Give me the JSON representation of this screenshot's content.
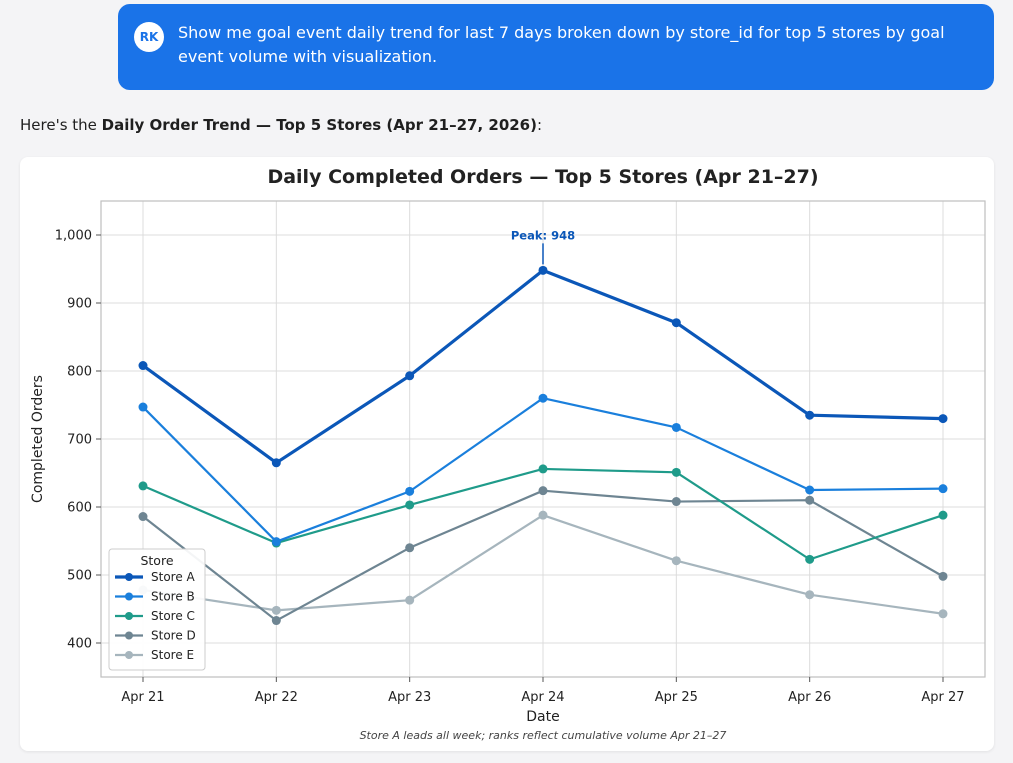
{
  "user_message": {
    "avatar_initials": "RK",
    "text": "Show me goal event daily trend for last 7 days broken down by store_id for top 5 stores by goal event volume with visualization."
  },
  "assistant": {
    "intro_prefix": "Here's the ",
    "intro_bold": "Daily Order Trend — Top 5 Stores (Apr 21–27, 2026)",
    "intro_suffix": ":"
  },
  "colors": {
    "user_bubble": "#1a73e8",
    "store_a": "#0b57b8",
    "store_b": "#1a7fdc",
    "store_c": "#1f9b8a",
    "store_d": "#6e8592",
    "store_e": "#a6b5bd"
  },
  "chart_data": {
    "type": "line",
    "title": "Daily Completed Orders — Top 5 Stores (Apr 21–27)",
    "xlabel": "Date",
    "ylabel": "Completed Orders",
    "categories": [
      "Apr 21",
      "Apr 22",
      "Apr 23",
      "Apr 24",
      "Apr 25",
      "Apr 26",
      "Apr 27"
    ],
    "ylim": [
      350,
      1050
    ],
    "yticks": [
      400,
      500,
      600,
      700,
      800,
      900,
      1000
    ],
    "ytick_labels": [
      "400",
      "500",
      "600",
      "700",
      "800",
      "900",
      "1,000"
    ],
    "grid": true,
    "legend_title": "Store",
    "legend_position": "lower-left",
    "series": [
      {
        "name": "Store A",
        "values": [
          808,
          665,
          793,
          948,
          871,
          735,
          730
        ]
      },
      {
        "name": "Store B",
        "values": [
          747,
          549,
          623,
          760,
          717,
          625,
          627
        ]
      },
      {
        "name": "Store C",
        "values": [
          631,
          547,
          603,
          656,
          651,
          523,
          588
        ]
      },
      {
        "name": "Store D",
        "values": [
          586,
          433,
          540,
          624,
          608,
          610,
          498
        ]
      },
      {
        "name": "Store E",
        "values": [
          478,
          448,
          463,
          588,
          521,
          471,
          443
        ]
      }
    ],
    "annotation": {
      "text": "Peak: 948",
      "series": "Store A",
      "category": "Apr 24"
    },
    "footnote": "Store A leads all week; ranks reflect cumulative volume Apr 21–27"
  }
}
